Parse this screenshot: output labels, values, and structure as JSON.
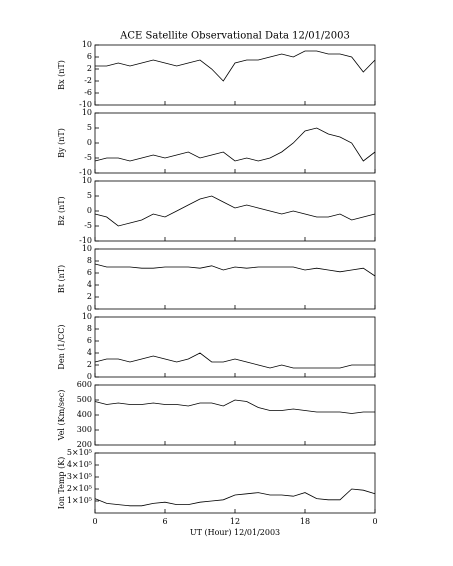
{
  "chart_data": [
    {
      "type": "line",
      "title": "ACE Satellite Observational Data  12/01/2003",
      "ylabel": "Bx (nT)",
      "color": "#000000",
      "x": [
        0,
        1,
        2,
        3,
        4,
        5,
        6,
        7,
        8,
        9,
        10,
        11,
        12,
        13,
        14,
        15,
        16,
        17,
        18,
        19,
        20,
        21,
        22,
        23,
        24
      ],
      "values": [
        3,
        3,
        4,
        3,
        4,
        5,
        4,
        3,
        4,
        5,
        2,
        -2,
        4,
        5,
        5,
        6,
        7,
        6,
        8,
        8,
        7,
        7,
        6,
        1,
        5
      ],
      "xlim": [
        0,
        24
      ],
      "ylim": [
        -10,
        10
      ],
      "yticks": [
        -10,
        -6,
        -2,
        2,
        6,
        10
      ]
    },
    {
      "type": "line",
      "ylabel": "By (nT)",
      "color": "#000000",
      "x": [
        0,
        1,
        2,
        3,
        4,
        5,
        6,
        7,
        8,
        9,
        10,
        11,
        12,
        13,
        14,
        15,
        16,
        17,
        18,
        19,
        20,
        21,
        22,
        23,
        24
      ],
      "values": [
        -6,
        -5,
        -5,
        -6,
        -5,
        -4,
        -5,
        -4,
        -3,
        -5,
        -4,
        -3,
        -6,
        -5,
        -6,
        -5,
        -3,
        0,
        4,
        5,
        3,
        2,
        0,
        -6,
        -3
      ],
      "xlim": [
        0,
        24
      ],
      "ylim": [
        -10,
        10
      ],
      "yticks": [
        -10,
        -5,
        0,
        5,
        10
      ]
    },
    {
      "type": "line",
      "ylabel": "Bz (nT)",
      "color": "#000000",
      "x": [
        0,
        1,
        2,
        3,
        4,
        5,
        6,
        7,
        8,
        9,
        10,
        11,
        12,
        13,
        14,
        15,
        16,
        17,
        18,
        19,
        20,
        21,
        22,
        23,
        24
      ],
      "values": [
        -1,
        -2,
        -5,
        -4,
        -3,
        -1,
        -2,
        0,
        2,
        4,
        5,
        3,
        1,
        2,
        1,
        0,
        -1,
        0,
        -1,
        -2,
        -2,
        -1,
        -3,
        -2,
        -1
      ],
      "xlim": [
        0,
        24
      ],
      "ylim": [
        -10,
        10
      ],
      "yticks": [
        -10,
        -5,
        0,
        5,
        10
      ]
    },
    {
      "type": "line",
      "ylabel": "Bt (nT)",
      "color": "#000000",
      "x": [
        0,
        1,
        2,
        3,
        4,
        5,
        6,
        7,
        8,
        9,
        10,
        11,
        12,
        13,
        14,
        15,
        16,
        17,
        18,
        19,
        20,
        21,
        22,
        23,
        24
      ],
      "values": [
        7.5,
        7,
        7,
        7,
        6.8,
        6.8,
        7,
        7,
        7,
        6.8,
        7.2,
        6.5,
        7,
        6.8,
        7,
        7,
        7,
        7,
        6.5,
        6.8,
        6.5,
        6.2,
        6.5,
        6.8,
        5.5
      ],
      "xlim": [
        0,
        24
      ],
      "ylim": [
        0,
        10
      ],
      "yticks": [
        0,
        2,
        4,
        6,
        8,
        10
      ]
    },
    {
      "type": "line",
      "ylabel": "Den (1/CC)",
      "color": "#000000",
      "x": [
        0,
        1,
        2,
        3,
        4,
        5,
        6,
        7,
        8,
        9,
        10,
        11,
        12,
        13,
        14,
        15,
        16,
        17,
        18,
        19,
        20,
        21,
        22,
        23,
        24
      ],
      "values": [
        2.5,
        3,
        3,
        2.5,
        3,
        3.5,
        3,
        2.5,
        3,
        4,
        2.5,
        2.5,
        3,
        2.5,
        2,
        1.5,
        2,
        1.5,
        1.5,
        1.5,
        1.5,
        1.5,
        2,
        2,
        2
      ],
      "xlim": [
        0,
        24
      ],
      "ylim": [
        0,
        10
      ],
      "yticks": [
        0,
        2,
        4,
        6,
        8,
        10
      ]
    },
    {
      "type": "line",
      "ylabel": "Vel (Km/sec)",
      "color": "#000000",
      "x": [
        0,
        1,
        2,
        3,
        4,
        5,
        6,
        7,
        8,
        9,
        10,
        11,
        12,
        13,
        14,
        15,
        16,
        17,
        18,
        19,
        20,
        21,
        22,
        23,
        24
      ],
      "values": [
        490,
        470,
        480,
        470,
        470,
        480,
        470,
        470,
        460,
        480,
        480,
        460,
        500,
        490,
        450,
        430,
        430,
        440,
        430,
        420,
        420,
        420,
        410,
        420,
        420
      ],
      "xlim": [
        0,
        24
      ],
      "ylim": [
        200,
        600
      ],
      "yticks": [
        200,
        300,
        400,
        500,
        600
      ]
    },
    {
      "type": "line",
      "ylabel": "Ion Temp (K)",
      "xlabel": "UT (Hour)  12/01/2003",
      "color": "#000000",
      "x": [
        0,
        1,
        2,
        3,
        4,
        5,
        6,
        7,
        8,
        9,
        10,
        11,
        12,
        13,
        14,
        15,
        16,
        17,
        18,
        19,
        20,
        21,
        22,
        23,
        24
      ],
      "values": [
        120000,
        80000,
        70000,
        60000,
        60000,
        80000,
        90000,
        70000,
        70000,
        90000,
        100000,
        110000,
        150000,
        160000,
        170000,
        150000,
        150000,
        140000,
        170000,
        120000,
        110000,
        110000,
        200000,
        190000,
        160000
      ],
      "xlim": [
        0,
        24
      ],
      "ylim": [
        0,
        500000
      ],
      "yticks": [
        {
          "value": 100000,
          "label": "1×10⁵"
        },
        {
          "value": 200000,
          "label": "2×10⁵"
        },
        {
          "value": 300000,
          "label": "3×10⁵"
        },
        {
          "value": 400000,
          "label": "4×10⁵"
        },
        {
          "value": 500000,
          "label": "5×10⁵"
        }
      ],
      "xticks": [
        0,
        6,
        12,
        18,
        {
          "value": 24,
          "label": "0"
        }
      ]
    }
  ]
}
